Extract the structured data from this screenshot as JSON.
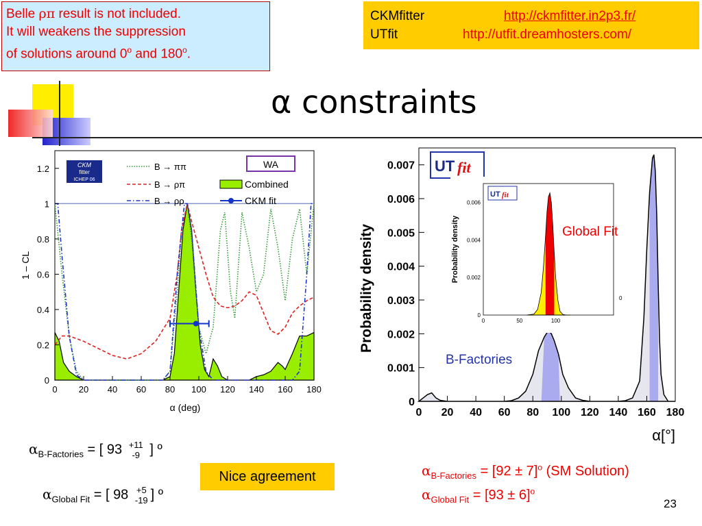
{
  "note": {
    "line1_pre": "Belle ",
    "line1_greek": "ρπ",
    "line1_post": " result is not included.",
    "line2": "It will weakens the suppression",
    "line3_pre": "of solutions around 0",
    "line3_mid": " and 180",
    "line3_end": ".",
    "deg": "o"
  },
  "links": {
    "ckm_label": "CKMfitter",
    "ckm_url": "http://ckmfitter.in2p3.fr/",
    "ut_label": "UTfit",
    "ut_url": "http://utfit.dreamhosters.com/"
  },
  "title": "α constraints",
  "colors": {
    "note_bg": "#ccecff",
    "links_bg": "#ffcc00",
    "combined_fill": "#99ee00",
    "bfactories_fill": "#aaaaee",
    "global_red": "#ee0000",
    "global_yellow": "#ffee00"
  },
  "chart_data": [
    {
      "type": "line",
      "xlabel": "α (deg)",
      "ylabel": "1 – CL",
      "xlim": [
        0,
        180
      ],
      "ylim": [
        0,
        1.3
      ],
      "xticks": [
        "0",
        "20",
        "40",
        "60",
        "80",
        "100",
        "120",
        "140",
        "160",
        "180"
      ],
      "yticks": [
        "0",
        "0.2",
        "0.4",
        "0.6",
        "0.8",
        "1",
        "1.2"
      ],
      "logo": {
        "line1": "CKM",
        "line2": "fitter",
        "line3": "ICHEP 06"
      },
      "wa_label": "WA",
      "legend_position": "top-right",
      "series": [
        {
          "name": "B → ππ",
          "style": "dotted",
          "color": "#339933",
          "x": [
            0,
            5,
            10,
            15,
            20,
            30,
            40,
            50,
            60,
            70,
            75,
            80,
            85,
            88,
            92,
            95,
            100,
            105,
            110,
            115,
            118,
            122,
            125,
            130,
            135,
            140,
            145,
            150,
            155,
            160,
            165,
            170,
            175,
            180
          ],
          "y": [
            1.0,
            0.6,
            0.25,
            0.05,
            0.0,
            0.0,
            0.0,
            0.0,
            0.0,
            0.0,
            0.0,
            0.05,
            0.5,
            0.85,
            1.0,
            0.8,
            0.3,
            0.15,
            0.3,
            0.85,
            0.95,
            0.5,
            0.35,
            0.95,
            0.75,
            0.5,
            0.6,
            0.97,
            0.75,
            0.45,
            0.8,
            0.97,
            0.6,
            1.0
          ]
        },
        {
          "name": "B → ρπ",
          "style": "dashed",
          "color": "#dd2222",
          "x": [
            0,
            5,
            10,
            20,
            30,
            40,
            50,
            60,
            70,
            80,
            85,
            88,
            92,
            95,
            100,
            105,
            110,
            115,
            120,
            125,
            130,
            135,
            140,
            145,
            150,
            155,
            160,
            165,
            170,
            175,
            180
          ],
          "y": [
            0.2,
            0.25,
            0.25,
            0.22,
            0.18,
            0.14,
            0.12,
            0.15,
            0.22,
            0.35,
            0.6,
            0.85,
            1.0,
            0.9,
            0.75,
            0.6,
            0.47,
            0.42,
            0.41,
            0.42,
            0.45,
            0.5,
            0.48,
            0.38,
            0.28,
            0.26,
            0.3,
            0.38,
            0.42,
            0.45,
            0.47
          ]
        },
        {
          "name": "B → ρρ",
          "style": "dashdot",
          "color": "#2233cc",
          "x": [
            0,
            2,
            5,
            10,
            15,
            20,
            30,
            40,
            50,
            60,
            70,
            75,
            80,
            85,
            90,
            92,
            95,
            100,
            105,
            110,
            115,
            120,
            125,
            130,
            135,
            140,
            150,
            160,
            165,
            170,
            175,
            178,
            180
          ],
          "y": [
            1.0,
            1.0,
            0.7,
            0.25,
            0.03,
            0.0,
            0.0,
            0.0,
            0.0,
            0.0,
            0.0,
            0.0,
            0.05,
            0.6,
            1.0,
            1.0,
            0.85,
            0.3,
            0.05,
            0.0,
            0.0,
            0.0,
            0.0,
            0.0,
            0.0,
            0.0,
            0.0,
            0.0,
            0.0,
            0.05,
            0.6,
            1.0,
            1.0
          ]
        },
        {
          "name": "Combined",
          "style": "fill",
          "color": "#99ee00",
          "x": [
            0,
            3,
            6,
            10,
            15,
            20,
            25,
            30,
            40,
            50,
            60,
            70,
            75,
            80,
            83,
            86,
            89,
            92,
            95,
            98,
            101,
            104,
            107,
            110,
            113,
            116,
            120,
            125,
            130,
            135,
            140,
            145,
            150,
            155,
            158,
            160,
            165,
            170,
            175,
            180
          ],
          "y": [
            0.27,
            0.22,
            0.1,
            0.05,
            0.02,
            0.0,
            0.0,
            0.0,
            0.0,
            0.0,
            0.0,
            0.0,
            0.0,
            0.02,
            0.15,
            0.5,
            0.85,
            1.0,
            0.85,
            0.5,
            0.2,
            0.06,
            0.02,
            0.12,
            0.08,
            0.02,
            0.0,
            0.0,
            0.0,
            0.0,
            0.02,
            0.03,
            0.05,
            0.1,
            0.08,
            0.06,
            0.15,
            0.25,
            0.25,
            0.27
          ]
        }
      ],
      "ckm_fit": {
        "name": "CKM fit",
        "center": 98,
        "low": 80,
        "high": 107,
        "cl": 0.32
      }
    },
    {
      "type": "area",
      "xlabel": "α[°]",
      "ylabel": "Probability density",
      "xlim": [
        0,
        180
      ],
      "ylim": [
        0,
        0.0075
      ],
      "xticks": [
        "0",
        "20",
        "40",
        "60",
        "80",
        "100",
        "120",
        "140",
        "160",
        "180"
      ],
      "yticks": [
        "0",
        "0.001",
        "0.002",
        "0.003",
        "0.004",
        "0.005",
        "0.006",
        "0.007"
      ],
      "logo": {
        "ut": "UT",
        "fit": "fit"
      },
      "annotations": {
        "global": "Global Fit",
        "bfactories": "B-Factories"
      },
      "series": [
        {
          "name": "B-Factories",
          "color": "#aaaaee",
          "x": [
            0,
            3,
            6,
            9,
            12,
            15,
            20,
            30,
            40,
            50,
            60,
            65,
            70,
            75,
            80,
            84,
            88,
            91,
            93,
            95,
            98,
            101,
            105,
            110,
            115,
            120,
            125,
            130,
            135,
            140,
            145,
            150,
            155,
            158,
            160,
            162,
            164,
            165,
            166,
            167,
            168,
            169,
            170,
            172,
            175,
            178,
            180
          ],
          "y": [
            0.0,
            0.0001,
            0.0002,
            0.00025,
            0.0001,
            3e-05,
            0.0,
            0.0,
            0.0,
            0.0,
            0.0,
            2e-05,
            0.0001,
            0.0003,
            0.0008,
            0.0015,
            0.0019,
            0.0021,
            0.002,
            0.0018,
            0.0014,
            0.0008,
            0.0004,
            0.0001,
            3e-05,
            0.0,
            0.0,
            0.0,
            0.0,
            0.0,
            2e-05,
            0.0001,
            0.0006,
            0.0025,
            0.0045,
            0.0062,
            0.0072,
            0.0073,
            0.0068,
            0.0055,
            0.0035,
            0.0018,
            0.0008,
            0.0002,
            0.0,
            0.0,
            0.0
          ]
        }
      ]
    },
    {
      "type": "area",
      "xlabel": "",
      "ylabel": "Probability density",
      "xlim": [
        0,
        180
      ],
      "ylim": [
        0,
        0.007
      ],
      "xticks": [
        "0",
        "50",
        "100"
      ],
      "yticks": [
        "0",
        "0.002",
        "0.004",
        "0.006"
      ],
      "right_tick": "0",
      "logo": {
        "ut": "UT",
        "fit": "fit"
      },
      "series": [
        {
          "name": "Global Fit",
          "color": "#ee0000",
          "x": [
            60,
            70,
            75,
            80,
            83,
            86,
            88,
            90,
            92,
            94,
            96,
            98,
            100,
            103,
            106,
            110,
            115,
            120
          ],
          "y": [
            0.0,
            5e-05,
            0.0003,
            0.0012,
            0.0025,
            0.0042,
            0.0055,
            0.0063,
            0.0065,
            0.006,
            0.0048,
            0.0033,
            0.002,
            0.0008,
            0.0002,
            3e-05,
            0.0,
            0.0
          ]
        }
      ]
    }
  ],
  "formulas": {
    "left1": {
      "sym": "α",
      "sub": "B-Factories",
      "eq": " = [ 93 ",
      "up": "+11",
      "down": "-9",
      "end": " ] º"
    },
    "left2": {
      "sym": "α",
      "sub": "Global Fit",
      "eq": " = [ 98 ",
      "up": "+5",
      "down": "-19",
      "end": "] º"
    },
    "right1": {
      "sym": "α",
      "sub": "B-Factories",
      "eq": " = [92 ± 7]",
      "deg": "o",
      "tail": "(SM Solution)"
    },
    "right2": {
      "sym": "α",
      "sub": "Global Fit",
      "eq": " = [93 ± 6]",
      "deg": "o"
    }
  },
  "nice": "Nice agreement",
  "page": "23"
}
